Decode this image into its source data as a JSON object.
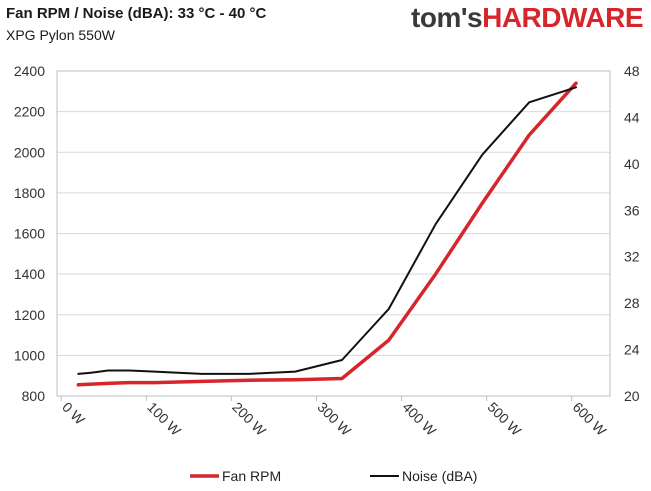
{
  "header": {
    "title": "Fan RPM / Noise (dBA): 33 °C - 40 °C",
    "subtitle": "XPG Pylon 550W"
  },
  "logo": {
    "part1": "tom's",
    "part2": "HARDWARE"
  },
  "colors": {
    "rpm": "#d6262c",
    "noise": "#111111",
    "grid": "#d9d9d9",
    "axis": "#bfbfbf"
  },
  "chart_data": {
    "type": "line",
    "title": "Fan RPM / Noise (dBA): 33 °C - 40 °C",
    "subtitle": "XPG Pylon 550W",
    "x_ticks": [
      {
        "value": 0,
        "label": "0 W"
      },
      {
        "value": 100,
        "label": "100 W"
      },
      {
        "value": 200,
        "label": "200 W"
      },
      {
        "value": 300,
        "label": "300 W"
      },
      {
        "value": 400,
        "label": "400 W"
      },
      {
        "value": 500,
        "label": "500 W"
      },
      {
        "value": 600,
        "label": "600 W"
      }
    ],
    "xlim": [
      -5,
      645
    ],
    "ylim_left": [
      800,
      2400
    ],
    "yticks_left": [
      800,
      1000,
      1200,
      1400,
      1600,
      1800,
      2000,
      2200,
      2400
    ],
    "ylim_right": [
      20,
      48
    ],
    "yticks_right": [
      20,
      24,
      28,
      32,
      36,
      40,
      44,
      48
    ],
    "grid": true,
    "legend_position": "bottom",
    "series": [
      {
        "name": "Fan RPM",
        "axis": "left",
        "x": [
          20,
          55,
          80,
          110,
          165,
          220,
          275,
          330,
          385,
          440,
          495,
          550,
          605
        ],
        "values": [
          855,
          862,
          866,
          866,
          872,
          878,
          880,
          886,
          1075,
          1400,
          1750,
          2085,
          2340
        ]
      },
      {
        "name": "Noise (dBA)",
        "axis": "right",
        "x": [
          20,
          35,
          55,
          80,
          110,
          165,
          220,
          275,
          330,
          385,
          440,
          495,
          550,
          605
        ],
        "values": [
          21.9,
          22.0,
          22.2,
          22.2,
          22.1,
          21.9,
          21.9,
          22.1,
          23.1,
          27.5,
          34.8,
          40.8,
          45.3,
          46.6
        ]
      }
    ]
  }
}
